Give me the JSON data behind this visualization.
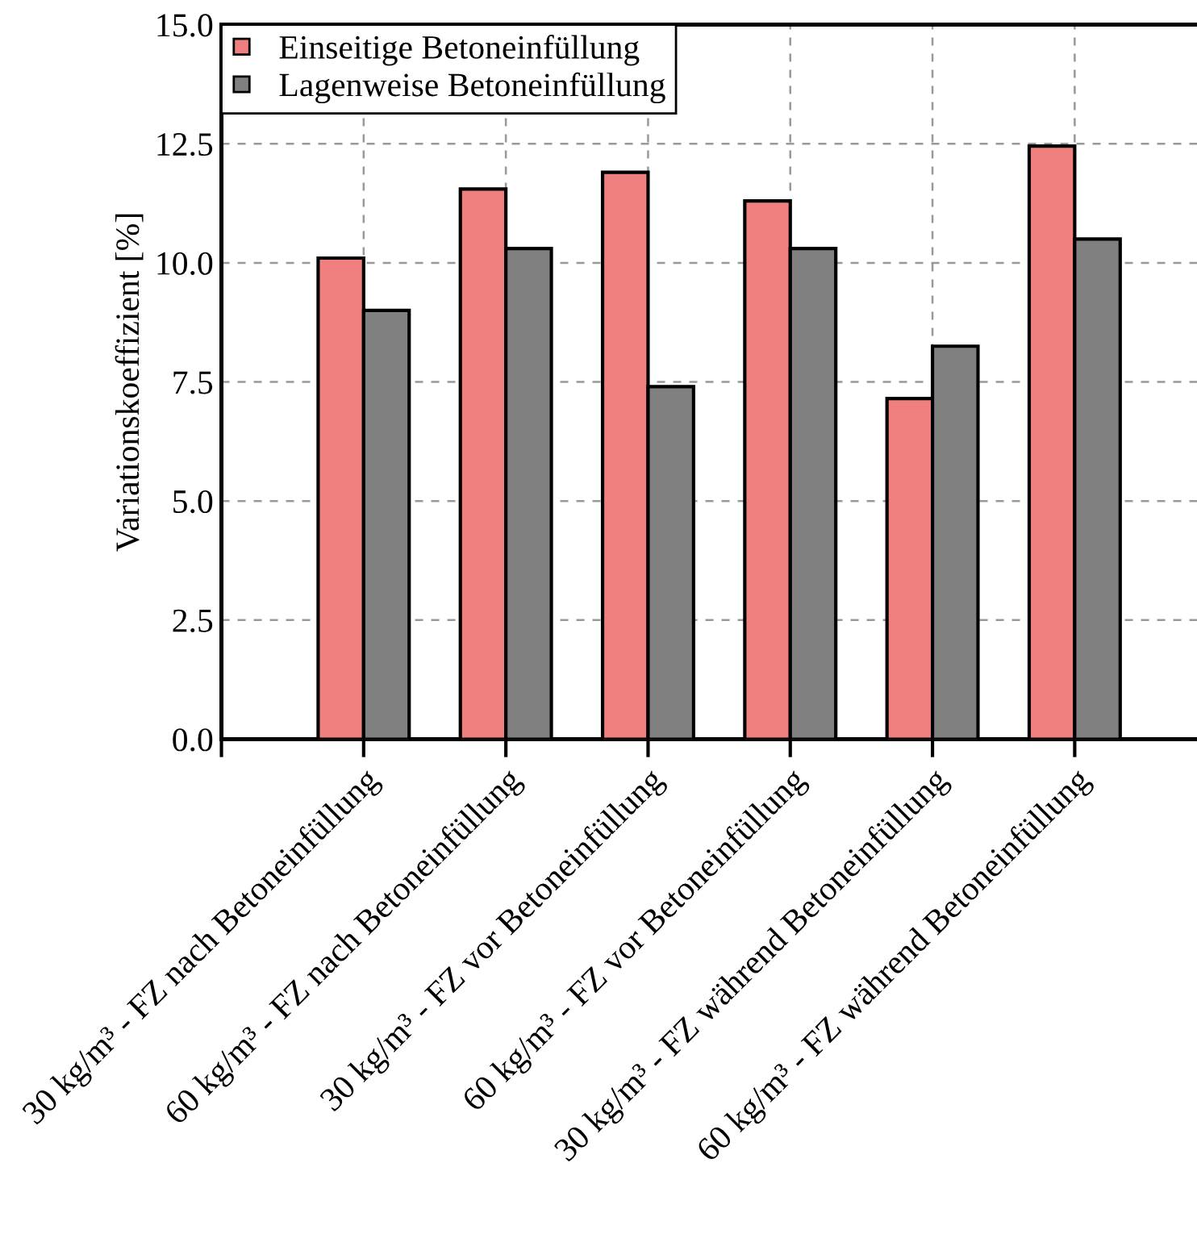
{
  "chart_data": {
    "type": "bar",
    "ylabel": "Variationskoeffizient [%]",
    "categories": [
      "30 kg/m³ - FZ nach Betoneinfüllung",
      "60 kg/m³ - FZ nach Betoneinfüllung",
      "30 kg/m³ - FZ vor Betoneinfüllung",
      "60 kg/m³ - FZ vor Betoneinfüllung",
      "30 kg/m³ - FZ während Betoneinfüllung",
      "60 kg/m³ - FZ während Betoneinfüllung"
    ],
    "series": [
      {
        "name": "Einseitige Betoneinfüllung",
        "color": "#f08080",
        "values": [
          10.1,
          11.55,
          11.9,
          11.3,
          7.15,
          12.45
        ]
      },
      {
        "name": "Lagenweise Betoneinfüllung",
        "color": "#808080",
        "values": [
          9.0,
          10.3,
          7.4,
          10.3,
          8.25,
          10.5
        ]
      }
    ],
    "ylim": [
      0,
      15
    ],
    "yticks": [
      {
        "value": 0,
        "label": "0.0"
      },
      {
        "value": 2.5,
        "label": "2.5"
      },
      {
        "value": 5,
        "label": "5.0"
      },
      {
        "value": 7.5,
        "label": "7.5"
      },
      {
        "value": 10,
        "label": "10.0"
      },
      {
        "value": 12.5,
        "label": "12.5"
      },
      {
        "value": 15,
        "label": "15.0"
      }
    ],
    "grid": true,
    "legend": "top left"
  }
}
